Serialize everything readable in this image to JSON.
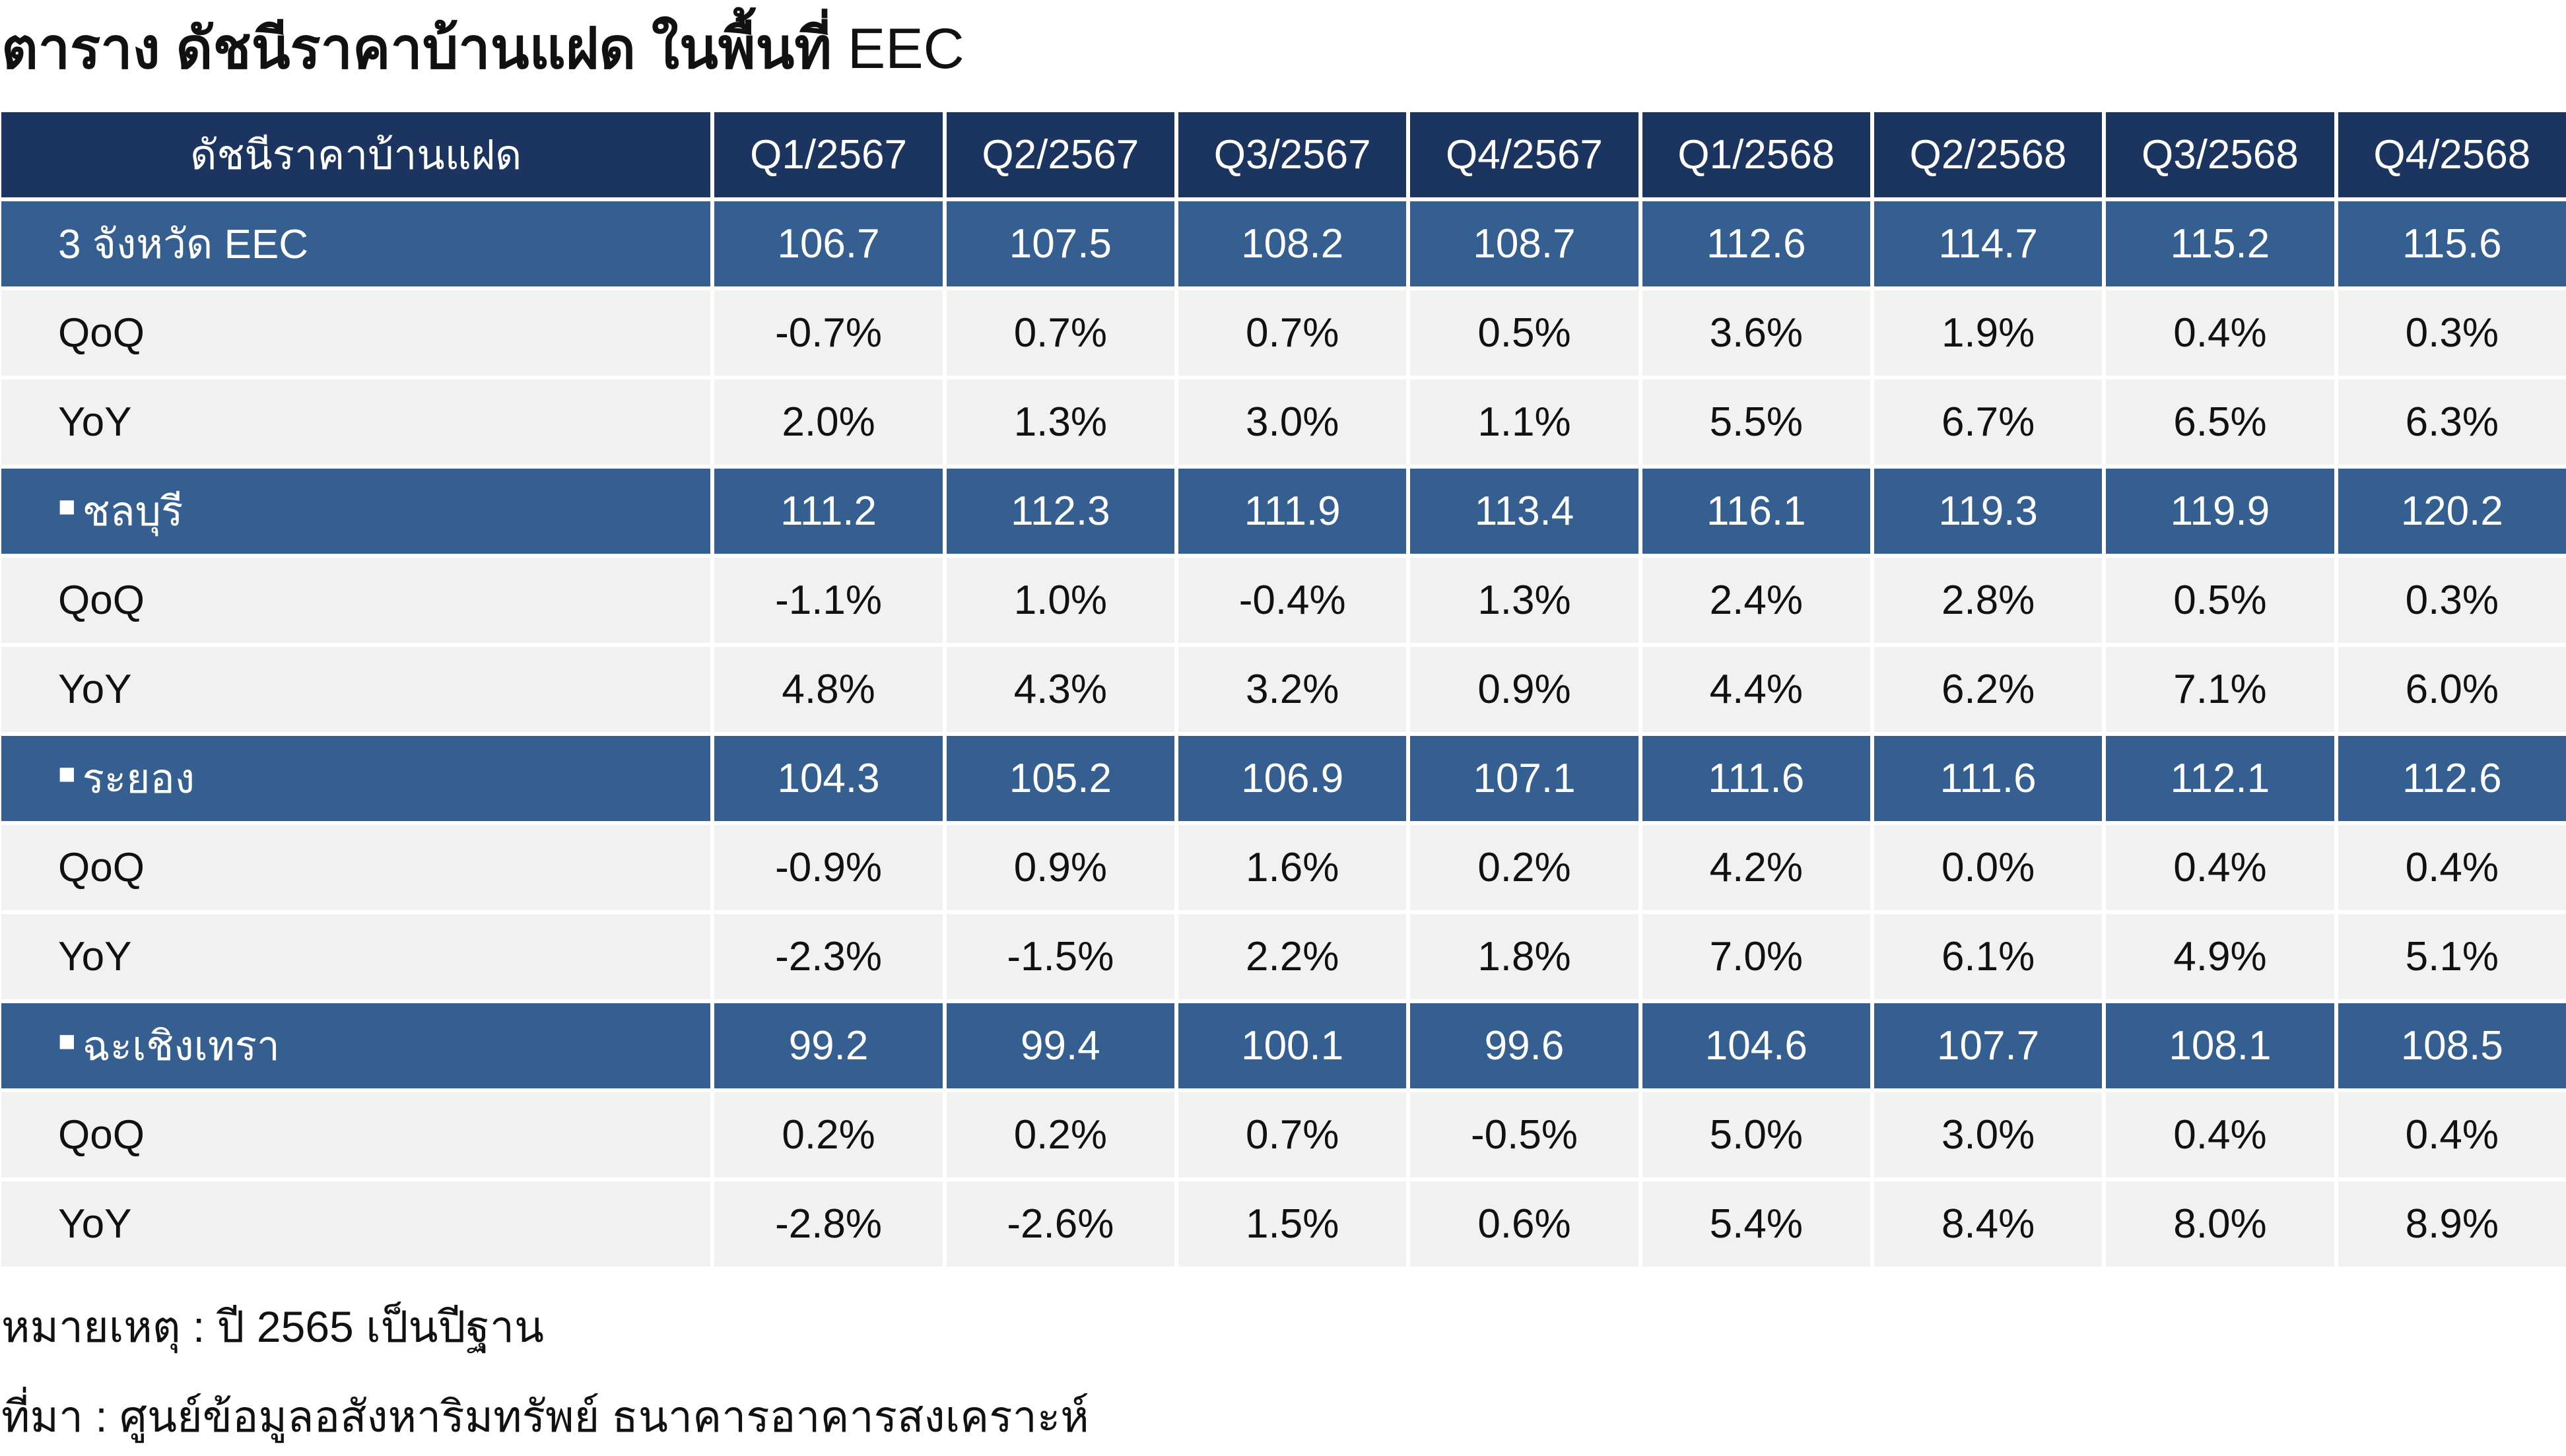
{
  "title": {
    "thai": "ตาราง ดัชนีราคาบ้านแฝด ในพื้นที่",
    "suffix": "EEC"
  },
  "table": {
    "header": [
      "ดัชนีราคาบ้านแฝด",
      "Q1/2567",
      "Q2/2567",
      "Q3/2567",
      "Q4/2567",
      "Q1/2568",
      "Q2/2568",
      "Q3/2568",
      "Q4/2568"
    ],
    "groups": [
      {
        "label": "3 จังหวัด EEC",
        "marker": "",
        "index": [
          "106.7",
          "107.5",
          "108.2",
          "108.7",
          "112.6",
          "114.7",
          "115.2",
          "115.6"
        ],
        "qoq_label": "QoQ",
        "qoq": [
          "-0.7%",
          "0.7%",
          "0.7%",
          "0.5%",
          "3.6%",
          "1.9%",
          "0.4%",
          "0.3%"
        ],
        "yoy_label": "YoY",
        "yoy": [
          "2.0%",
          "1.3%",
          "3.0%",
          "1.1%",
          "5.5%",
          "6.7%",
          "6.5%",
          "6.3%"
        ]
      },
      {
        "label": "ชลบุรี",
        "marker": "■",
        "index": [
          "111.2",
          "112.3",
          "111.9",
          "113.4",
          "116.1",
          "119.3",
          "119.9",
          "120.2"
        ],
        "qoq_label": "QoQ",
        "qoq": [
          "-1.1%",
          "1.0%",
          "-0.4%",
          "1.3%",
          "2.4%",
          "2.8%",
          "0.5%",
          "0.3%"
        ],
        "yoy_label": "YoY",
        "yoy": [
          "4.8%",
          "4.3%",
          "3.2%",
          "0.9%",
          "4.4%",
          "6.2%",
          "7.1%",
          "6.0%"
        ]
      },
      {
        "label": "ระยอง",
        "marker": "■",
        "index": [
          "104.3",
          "105.2",
          "106.9",
          "107.1",
          "111.6",
          "111.6",
          "112.1",
          "112.6"
        ],
        "qoq_label": "QoQ",
        "qoq": [
          "-0.9%",
          "0.9%",
          "1.6%",
          "0.2%",
          "4.2%",
          "0.0%",
          "0.4%",
          "0.4%"
        ],
        "yoy_label": "YoY",
        "yoy": [
          "-2.3%",
          "-1.5%",
          "2.2%",
          "1.8%",
          "7.0%",
          "6.1%",
          "4.9%",
          "5.1%"
        ]
      },
      {
        "label": "ฉะเชิงเทรา",
        "marker": "■",
        "index": [
          "99.2",
          "99.4",
          "100.1",
          "99.6",
          "104.6",
          "107.7",
          "108.1",
          "108.5"
        ],
        "qoq_label": "QoQ",
        "qoq": [
          "0.2%",
          "0.2%",
          "0.7%",
          "-0.5%",
          "5.0%",
          "3.0%",
          "0.4%",
          "0.4%"
        ],
        "yoy_label": "YoY",
        "yoy": [
          "-2.8%",
          "-2.6%",
          "1.5%",
          "0.6%",
          "5.4%",
          "8.4%",
          "8.0%",
          "8.9%"
        ]
      }
    ]
  },
  "colors": {
    "header_bg": "#1c3560",
    "province_row_bg": "#365f91",
    "sub_row_bg": "#f1f1f1",
    "negative_text": "#e0201f"
  },
  "footnotes": {
    "note": "หมายเหตุ : ปี 2565 เป็นปีฐาน",
    "source": "ที่มา : ศูนย์ข้อมูลอสังหาริมทรัพย์ ธนาคารอาคารสงเคราะห์"
  }
}
